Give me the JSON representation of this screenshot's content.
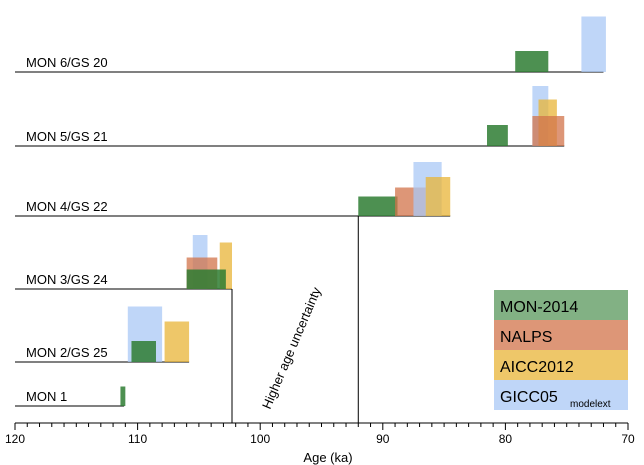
{
  "chart_data": {
    "type": "bar",
    "xlabel": "Age (ka)",
    "xlim": [
      120,
      70
    ],
    "x_ticks": [
      120,
      110,
      100,
      90,
      80,
      70
    ],
    "annotation": "Higher age uncertainty",
    "colors": {
      "MON-2014": "#2e7d32",
      "NALPS": "#d2734a",
      "AICC2012": "#e8b437",
      "GICC05": "#a9c8f5"
    },
    "legend": {
      "entries": [
        "MON-2014",
        "NALPS",
        "AICC2012",
        "GICC05"
      ],
      "gicc_subscript": "modelext",
      "placement": "bottom-right"
    },
    "rows": [
      {
        "label": "MON 6/GS 20",
        "line_from": 120,
        "line_to": 72,
        "bars": [
          {
            "series": "MON-2014",
            "from": 79.2,
            "to": 76.5,
            "height": 0.7
          },
          {
            "series": "GICC05",
            "from": 73.8,
            "to": 71.8,
            "height": 1.85
          }
        ]
      },
      {
        "label": "MON 5/GS 21",
        "line_from": 120,
        "line_to": 75.2,
        "bars": [
          {
            "series": "MON-2014",
            "from": 81.5,
            "to": 79.8,
            "height": 0.7
          },
          {
            "series": "GICC05",
            "from": 77.8,
            "to": 76.5,
            "height": 2.0
          },
          {
            "series": "AICC2012",
            "from": 77.3,
            "to": 75.8,
            "height": 1.55
          },
          {
            "series": "NALPS",
            "from": 77.8,
            "to": 75.2,
            "height": 1.0
          }
        ]
      },
      {
        "label": "MON 4/GS 22",
        "line_from": 120,
        "line_to": 84.5,
        "bars": [
          {
            "series": "MON-2014",
            "from": 92.0,
            "to": 88.8,
            "height": 0.65
          },
          {
            "series": "NALPS",
            "from": 89.0,
            "to": 86.5,
            "height": 0.95
          },
          {
            "series": "GICC05",
            "from": 87.5,
            "to": 85.2,
            "height": 1.8
          },
          {
            "series": "AICC2012",
            "from": 86.5,
            "to": 84.5,
            "height": 1.3
          }
        ]
      },
      {
        "label": "MON 3/GS 24",
        "line_from": 120,
        "line_to": 102.3,
        "bars": [
          {
            "series": "GICC05",
            "from": 105.5,
            "to": 104.3,
            "height": 1.8
          },
          {
            "series": "AICC2012",
            "from": 103.3,
            "to": 102.3,
            "height": 1.55
          },
          {
            "series": "NALPS",
            "from": 106.0,
            "to": 103.5,
            "height": 1.05
          },
          {
            "series": "MON-2014",
            "from": 106.0,
            "to": 102.8,
            "height": 0.65
          }
        ]
      },
      {
        "label": "MON 2/GS 25",
        "line_from": 120,
        "line_to": 105.8,
        "bars": [
          {
            "series": "GICC05",
            "from": 110.8,
            "to": 108.0,
            "height": 1.85
          },
          {
            "series": "AICC2012",
            "from": 107.8,
            "to": 105.8,
            "height": 1.35
          },
          {
            "series": "MON-2014",
            "from": 110.5,
            "to": 108.5,
            "height": 0.7
          }
        ]
      },
      {
        "label": "MON 1",
        "line_from": 120,
        "line_to": 111.1,
        "bars": [
          {
            "series": "MON-2014",
            "from": 111.4,
            "to": 111.0,
            "height": 0.65
          }
        ]
      }
    ]
  }
}
